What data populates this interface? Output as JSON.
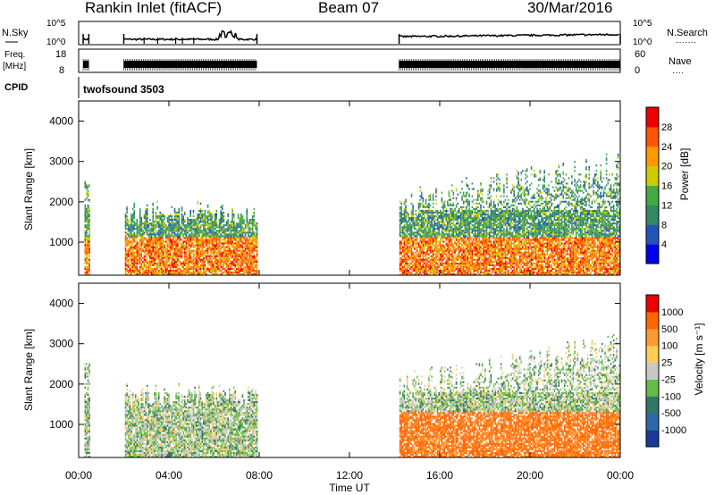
{
  "header": {
    "station": "Rankin Inlet (fitACF)",
    "beam": "Beam 07",
    "date": "30/Mar/2016"
  },
  "noise_panel": {
    "left_label": "N.Sky",
    "left_ticks": [
      "10^5",
      "10^0"
    ],
    "right_label": "N.Search",
    "right_dots": "·······",
    "right_ticks": [
      "10^5",
      "10^0"
    ]
  },
  "freq_panel": {
    "left_label_1": "Freq.",
    "left_label_2": "[MHz]",
    "left_ticks": [
      "18",
      "8"
    ],
    "right_label": "Nave",
    "right_dots": "····",
    "right_ticks": [
      "60",
      "0"
    ]
  },
  "cpid": {
    "label": "CPID",
    "value": "twofsound 3503"
  },
  "time_axis": {
    "label": "Time UT",
    "ticks": [
      "00:00",
      "04:00",
      "08:00",
      "12:00",
      "16:00",
      "20:00",
      "00:00"
    ]
  },
  "power_panel": {
    "ylabel": "Slant Range [km]",
    "yticks": [
      "1000",
      "2000",
      "3000",
      "4000"
    ],
    "colorbar_label": "Power [dB]",
    "colorbar_ticks": [
      "4",
      "8",
      "12",
      "16",
      "20",
      "24",
      "28"
    ],
    "colors": [
      "#0000ee",
      "#2255bb",
      "#338866",
      "#44aa44",
      "#cccc00",
      "#ff9900",
      "#ff5500",
      "#ee0000"
    ]
  },
  "velocity_panel": {
    "ylabel": "Slant Range [km]",
    "yticks": [
      "1000",
      "2000",
      "3000",
      "4000"
    ],
    "colorbar_label": "Velocity [m s⁻¹]",
    "colorbar_ticks": [
      "1000",
      "500",
      "100",
      "25",
      "-25",
      "-100",
      "-500",
      "-1000"
    ],
    "colors": [
      "#1a3a99",
      "#2a6aaa",
      "#337766",
      "#66bb44",
      "#c8c8c8",
      "#ffcc55",
      "#ff9933",
      "#ff6600",
      "#ee0000"
    ]
  },
  "chart_data": {
    "type": "heatmap",
    "x_axis": {
      "label": "Time UT",
      "range_hours": [
        0,
        24
      ]
    },
    "y_axis": {
      "label": "Slant Range [km]",
      "range": [
        180,
        4500
      ]
    },
    "data_gaps_hours": [
      [
        0.3,
        2.0
      ],
      [
        7.9,
        14.2
      ]
    ],
    "power_db_range": [
      0,
      32
    ],
    "velocity_ms_range": [
      -1000,
      1000
    ]
  }
}
